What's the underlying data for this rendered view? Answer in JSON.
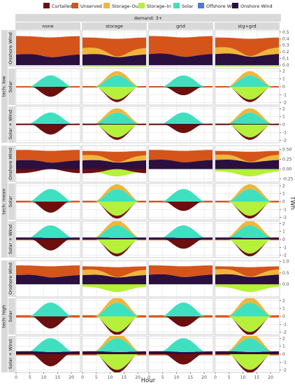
{
  "chart_data": {
    "type": "area",
    "xlabel": "Hour",
    "ylabel": "TWh",
    "x": [
      0,
      1,
      2,
      3,
      4,
      5,
      6,
      7,
      8,
      9,
      10,
      11,
      12,
      13,
      14,
      15,
      16,
      17,
      18,
      19,
      20,
      21,
      22,
      23
    ],
    "x_ticks": [
      "0",
      "5",
      "10",
      "15",
      "20"
    ],
    "facet_top": "demand: 3+",
    "columns": [
      "none",
      "storage",
      "grid",
      "stg+grd"
    ],
    "outer_rows": [
      "tech: low",
      "tech: mean",
      "tech: high"
    ],
    "inner_rows": [
      "Onshore Wind",
      "Solar",
      "Solar + Wind"
    ],
    "legend": [
      {
        "name": "Curtailed",
        "color": "#6b0f0f"
      },
      {
        "name": "Unserved",
        "color": "#d4541a"
      },
      {
        "name": "Storage–Out",
        "color": "#f0b63a"
      },
      {
        "name": "Storage–In",
        "color": "#b5f03a"
      },
      {
        "name": "Solar",
        "color": "#3fe0c0"
      },
      {
        "name": "Offshore Wind",
        "color": "#4d79e0"
      },
      {
        "name": "Onshore Wind",
        "color": "#2b0f3f"
      }
    ],
    "y_axes": [
      {
        "ticks": [
          "0.0",
          "0.1",
          "0.2",
          "0.3",
          "0.4",
          "0.5"
        ],
        "ylim": [
          -0.02,
          0.53
        ]
      },
      {
        "ticks": [
          "-2",
          "-1",
          "0",
          "1",
          "2"
        ],
        "ylim": [
          -2.3,
          2.3
        ]
      },
      {
        "ticks": [
          "-2",
          "-1",
          "0",
          "1",
          "2"
        ],
        "ylim": [
          -2.3,
          2.3
        ]
      },
      {
        "ticks": [
          "-0.25",
          "0.00",
          "0.25",
          "0.50"
        ],
        "ylim": [
          -0.33,
          0.6
        ]
      },
      {
        "ticks": [
          "-2",
          "-1",
          "0",
          "1",
          "2"
        ],
        "ylim": [
          -2.3,
          2.3
        ]
      },
      {
        "ticks": [
          "-2",
          "-1",
          "0",
          "1",
          "2"
        ],
        "ylim": [
          -2.3,
          2.3
        ]
      },
      {
        "ticks": [
          "0.0",
          "0.5",
          "1.0"
        ],
        "ylim": [
          -0.55,
          1.05
        ]
      },
      {
        "ticks": [
          "-2",
          "-1",
          "0",
          "1",
          "2"
        ],
        "ylim": [
          -2.3,
          2.3
        ]
      },
      {
        "ticks": [
          "-2",
          "-1",
          "0",
          "1",
          "2"
        ],
        "ylim": [
          -2.3,
          2.3
        ]
      }
    ],
    "approx_peaks": {
      "solar_peak": 1.6,
      "curtailed_trough": -1.4,
      "storage_in_trough": -1.8,
      "storage_out_peak": 0.6,
      "wind_mean_low": 0.16,
      "unserved_top_low": 0.45
    },
    "grid": true,
    "legend_position": "top"
  }
}
